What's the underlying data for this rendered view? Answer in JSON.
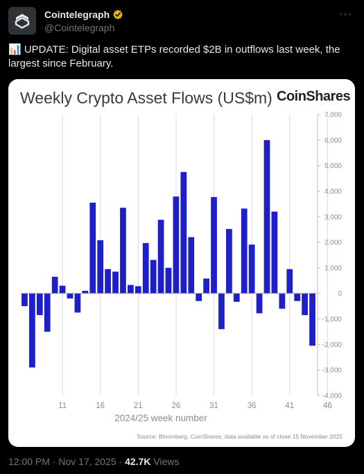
{
  "tweet": {
    "author_name": "Cointelegraph",
    "handle": "@Cointelegraph",
    "more_label": "···",
    "text": "📊 UPDATE: Digital asset ETPs recorded $2B in outflows last week, the largest since February.",
    "timestamp": "12:00 PM · Nov 17, 2025 ·",
    "views_count": "42.7K",
    "views_label": "Views"
  },
  "icons": {
    "avatar": "cointelegraph-logo-icon",
    "verified": "verified-badge-icon",
    "more": "more-options-icon"
  },
  "colors": {
    "bar": "#1f1fc8",
    "verified": "#e2b719",
    "background": "#000000",
    "card": "#ffffff"
  },
  "chart_data": {
    "type": "bar",
    "title": "Weekly Crypto Asset Flows (US$m)",
    "brand": "CoinShares",
    "xlabel": "2024/25 week number",
    "ylabel": "",
    "source": "Source: Bloomberg, CoinShares, data available as of close 15 November 2025",
    "ylim": [
      -4000,
      7000
    ],
    "yticks": [
      7000,
      6000,
      5000,
      4000,
      3000,
      2000,
      1000,
      0,
      -1000,
      -2000,
      -3000,
      -4000
    ],
    "ytick_labels": [
      "7,000",
      "6,000",
      "5,000",
      "4,000",
      "3,000",
      "2,000",
      "1,000",
      "0",
      "-1,000",
      "-2,000",
      "-3,000",
      "-4,000"
    ],
    "xtick_labels": [
      "11",
      "16",
      "21",
      "26",
      "31",
      "36",
      "41",
      "46"
    ],
    "xtick_index": [
      5,
      10,
      15,
      20,
      25,
      30,
      35,
      40
    ],
    "grid": "vertical",
    "y_axis_side": "right",
    "values": [
      -500,
      -2900,
      -850,
      -1500,
      650,
      300,
      -200,
      -750,
      100,
      3550,
      2080,
      950,
      850,
      3350,
      330,
      280,
      1970,
      1310,
      2880,
      1000,
      3790,
      4750,
      2200,
      -300,
      580,
      3770,
      -1400,
      2520,
      -330,
      3320,
      1910,
      -780,
      6000,
      3200,
      -600,
      950,
      -300,
      -850,
      -2050
    ]
  }
}
